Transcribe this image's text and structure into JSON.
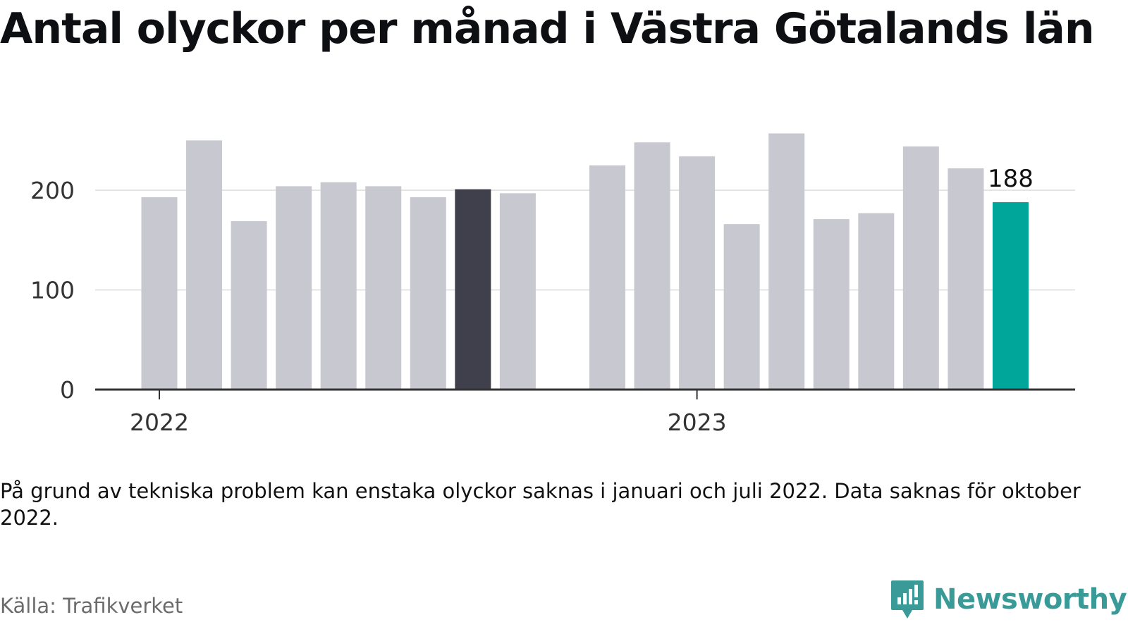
{
  "title": "Antal olyckor per månad i Västra Götalands län",
  "note": "På grund av tekniska problem kan enstaka olyckor saknas i januari och juli 2022. Data saknas för oktober 2022.",
  "source": "Källa: Trafikverket",
  "brand": {
    "name": "Newsworthy",
    "icon": "newsworthy-logo-icon",
    "color": "#3a9a97"
  },
  "colors": {
    "default": "#c8c8d0",
    "dark": "#403f4c",
    "highlight": "#00a69a",
    "axis": "#333333",
    "grid": "#e4e4e4"
  },
  "chart_data": {
    "type": "bar",
    "x_tick_labels": [
      "2022",
      "2023"
    ],
    "y_ticks": [
      0,
      100,
      200
    ],
    "ylim": [
      0,
      258
    ],
    "grid": true,
    "bars": [
      {
        "year": 2022,
        "month": 1,
        "value": 193,
        "style": "default"
      },
      {
        "year": 2022,
        "month": 2,
        "value": 250,
        "style": "default"
      },
      {
        "year": 2022,
        "month": 3,
        "value": 169,
        "style": "default"
      },
      {
        "year": 2022,
        "month": 4,
        "value": 204,
        "style": "default"
      },
      {
        "year": 2022,
        "month": 5,
        "value": 208,
        "style": "default"
      },
      {
        "year": 2022,
        "month": 6,
        "value": 204,
        "style": "default"
      },
      {
        "year": 2022,
        "month": 7,
        "value": 193,
        "style": "default"
      },
      {
        "year": 2022,
        "month": 8,
        "value": 201,
        "style": "dark"
      },
      {
        "year": 2022,
        "month": 9,
        "value": 197,
        "style": "default"
      },
      {
        "year": 2022,
        "month": 11,
        "value": 225,
        "style": "default"
      },
      {
        "year": 2022,
        "month": 12,
        "value": 248,
        "style": "default"
      },
      {
        "year": 2023,
        "month": 1,
        "value": 234,
        "style": "default"
      },
      {
        "year": 2023,
        "month": 2,
        "value": 166,
        "style": "default"
      },
      {
        "year": 2023,
        "month": 3,
        "value": 257,
        "style": "default"
      },
      {
        "year": 2023,
        "month": 4,
        "value": 171,
        "style": "default"
      },
      {
        "year": 2023,
        "month": 5,
        "value": 177,
        "style": "default"
      },
      {
        "year": 2023,
        "month": 6,
        "value": 244,
        "style": "default"
      },
      {
        "year": 2023,
        "month": 7,
        "value": 222,
        "style": "default"
      },
      {
        "year": 2023,
        "month": 8,
        "value": 188,
        "style": "highlight",
        "label": "188"
      }
    ]
  }
}
